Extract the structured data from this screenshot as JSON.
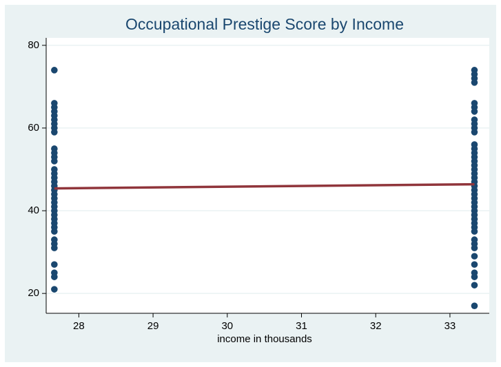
{
  "chart_data": {
    "type": "scatter",
    "title": "Occupational Prestige Score by Income",
    "x_label": "income in thousands",
    "xlim": [
      27.56,
      33.53
    ],
    "ylim": [
      15.2,
      81.8
    ],
    "xticks": [
      28,
      29,
      30,
      31,
      32,
      33
    ],
    "yticks": [
      20,
      40,
      60,
      80
    ],
    "grid": true,
    "series": [
      {
        "type": "scatter",
        "color": "#1a476f",
        "x": [
          27.67,
          27.67,
          27.67,
          27.67,
          27.67,
          27.67,
          27.67,
          27.67,
          27.67,
          27.67,
          27.67,
          27.67,
          27.67,
          27.67,
          27.67,
          27.67,
          27.67,
          27.67,
          27.67,
          27.67,
          27.67,
          27.67,
          27.67,
          27.67,
          27.67,
          27.67,
          27.67,
          27.67,
          27.67,
          27.67,
          27.67,
          27.67,
          27.67,
          27.67,
          27.67,
          27.67,
          33.33,
          33.33,
          33.33,
          33.33,
          33.33,
          33.33,
          33.33,
          33.33,
          33.33,
          33.33,
          33.33,
          33.33,
          33.33,
          33.33,
          33.33,
          33.33,
          33.33,
          33.33,
          33.33,
          33.33,
          33.33,
          33.33,
          33.33,
          33.33,
          33.33,
          33.33,
          33.33,
          33.33,
          33.33,
          33.33,
          33.33,
          33.33,
          33.33,
          33.33,
          33.33,
          33.33,
          33.33,
          33.33,
          33.33,
          33.33,
          33.33,
          33.33
        ],
        "values": [
          74,
          66,
          65,
          64,
          63,
          62,
          61,
          60,
          59,
          55,
          54,
          53,
          52,
          50,
          49,
          48,
          47,
          46,
          45,
          44,
          43,
          42,
          41,
          40,
          39,
          38,
          37,
          36,
          35,
          33,
          32,
          31,
          27,
          25,
          24,
          21,
          74,
          73,
          72,
          71,
          66,
          65,
          64,
          62,
          61,
          60,
          59,
          56,
          55,
          54,
          53,
          52,
          51,
          50,
          49,
          48,
          47,
          46,
          45,
          44,
          43,
          42,
          41,
          40,
          39,
          38,
          37,
          36,
          35,
          33,
          32,
          31,
          29,
          27,
          25,
          24,
          22,
          17
        ]
      },
      {
        "type": "line",
        "color": "#90353b",
        "x": [
          27.67,
          33.33
        ],
        "values": [
          45.4,
          46.4
        ]
      }
    ]
  }
}
